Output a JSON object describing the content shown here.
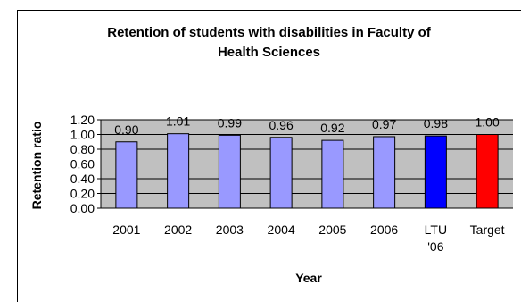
{
  "chart_data": {
    "type": "bar",
    "title_lines": [
      "Retention of students with disabilities in Faculty of",
      "Health Sciences"
    ],
    "xlabel": "Year",
    "ylabel": "Retention ratio",
    "categories": [
      [
        "2001"
      ],
      [
        "2002"
      ],
      [
        "2003"
      ],
      [
        "2004"
      ],
      [
        "2005"
      ],
      [
        "2006"
      ],
      [
        "LTU",
        "'06"
      ],
      [
        "Target"
      ]
    ],
    "values": [
      0.9,
      1.01,
      0.99,
      0.96,
      0.92,
      0.97,
      0.98,
      1.0
    ],
    "data_labels": [
      "0.90",
      "1.01",
      "0.99",
      "0.96",
      "0.92",
      "0.97",
      "0.98",
      "1.00"
    ],
    "bar_colors": [
      "#9999ff",
      "#9999ff",
      "#9999ff",
      "#9999ff",
      "#9999ff",
      "#9999ff",
      "#0000ff",
      "#ff0000"
    ],
    "plot_background": "#c0c0c0",
    "yticks": [
      "0.00",
      "0.20",
      "0.40",
      "0.60",
      "0.80",
      "1.00",
      "1.20"
    ],
    "ylim": [
      0,
      1.2
    ],
    "grid": true,
    "legend": "none"
  }
}
